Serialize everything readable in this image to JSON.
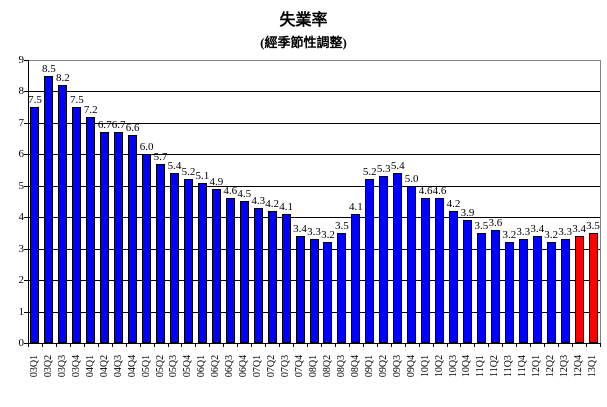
{
  "title": "失業率",
  "subtitle": "(經季節性調整)",
  "chart_data": {
    "type": "bar",
    "title": "失業率",
    "subtitle": "(經季節性調整)",
    "categories": [
      "03Q1",
      "03Q2",
      "03Q3",
      "03Q4",
      "04Q1",
      "04Q2",
      "04Q3",
      "04Q4",
      "05Q1",
      "05Q2",
      "05Q3",
      "05Q4",
      "06Q1",
      "06Q2",
      "06Q3",
      "06Q4",
      "07Q1",
      "07Q2",
      "07Q3",
      "07Q4",
      "08Q1",
      "08Q2",
      "08Q3",
      "08Q4",
      "09Q1",
      "09Q2",
      "09Q3",
      "09Q4",
      "10Q1",
      "10Q2",
      "10Q3",
      "10Q4",
      "11Q1",
      "11Q2",
      "11Q3",
      "11Q4",
      "12Q1",
      "12Q2",
      "12Q3",
      "12Q4",
      "13Q1"
    ],
    "values": [
      7.5,
      8.5,
      8.2,
      7.5,
      7.2,
      6.7,
      6.7,
      6.6,
      6.0,
      5.7,
      5.4,
      5.2,
      5.1,
      4.9,
      4.6,
      4.5,
      4.3,
      4.2,
      4.1,
      3.4,
      3.3,
      3.2,
      3.5,
      4.1,
      5.2,
      5.3,
      5.4,
      5.0,
      4.6,
      4.6,
      4.2,
      3.9,
      3.5,
      3.6,
      3.2,
      3.3,
      3.4,
      3.2,
      3.3,
      3.4,
      3.5
    ],
    "xlabel": "",
    "ylabel": "",
    "ylim": [
      0,
      9
    ],
    "yticks": [
      0,
      1,
      2,
      3,
      4,
      5,
      6,
      7,
      8,
      9
    ],
    "grid": "horizontal",
    "legend": "none",
    "data_labels": true,
    "data_label_format": "0.0",
    "x_tick_label_rotation": -90,
    "bar_color": "#0000FF",
    "highlight": {
      "categories": [
        "12Q4",
        "13Q1"
      ],
      "color": "#FF0000"
    }
  },
  "colors": {
    "bar": "#0000FF",
    "highlight_bar": "#FF0000",
    "bar_border": "#000000",
    "gridline": "#000000",
    "axis": "#000000",
    "plot_frame": "#848484",
    "text": "#000000",
    "background": "#FFFFFF"
  }
}
